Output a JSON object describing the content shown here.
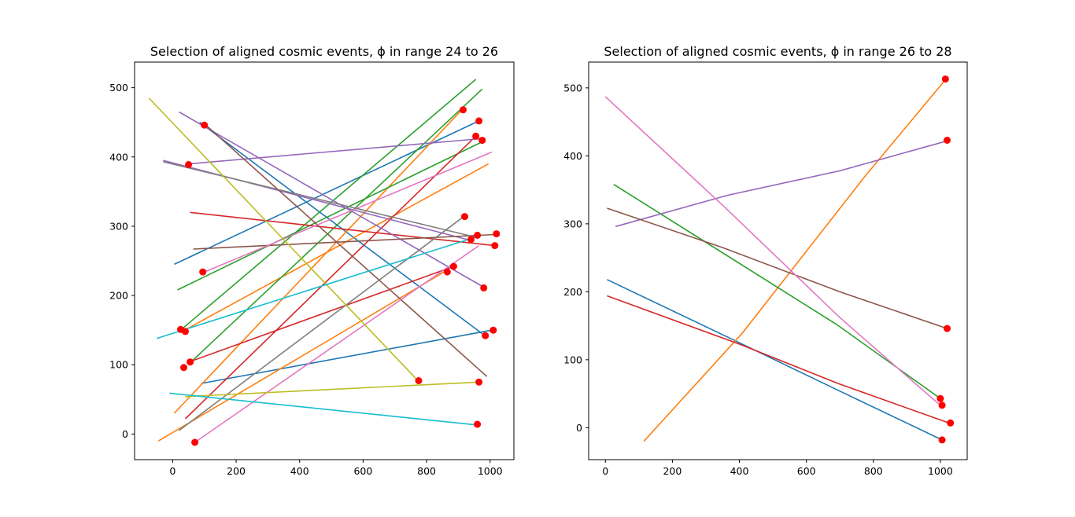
{
  "chart_data": [
    {
      "type": "line",
      "title": "Selection of aligned cosmic events, ϕ in range 24 to 26",
      "xlabel": "",
      "ylabel": "",
      "xlim": [
        -120,
        1075
      ],
      "ylim": [
        -37,
        537
      ],
      "xticks": [
        "0",
        "200",
        "400",
        "600",
        "800",
        "1000"
      ],
      "yticks": [
        "0",
        "100",
        "200",
        "300",
        "400",
        "500"
      ],
      "grid": false,
      "series": [
        {
          "color": "#1f77b4",
          "x": [
            5,
            965
          ],
          "y": [
            245,
            452
          ]
        },
        {
          "color": "#1f77b4",
          "x": [
            85,
            975
          ],
          "y": [
            450,
            145
          ]
        },
        {
          "color": "#1f77b4",
          "x": [
            90,
            1005
          ],
          "y": [
            73,
            150
          ]
        },
        {
          "color": "#ff7f0e",
          "x": [
            5,
            915
          ],
          "y": [
            30,
            470
          ]
        },
        {
          "color": "#ff7f0e",
          "x": [
            30,
            995
          ],
          "y": [
            148,
            390
          ]
        },
        {
          "color": "#ff7f0e",
          "x": [
            -45,
            870
          ],
          "y": [
            -10,
            238
          ]
        },
        {
          "color": "#2ca02c",
          "x": [
            15,
            980
          ],
          "y": [
            208,
            423
          ]
        },
        {
          "color": "#2ca02c",
          "x": [
            25,
            955
          ],
          "y": [
            150,
            512
          ]
        },
        {
          "color": "#2ca02c",
          "x": [
            60,
            975
          ],
          "y": [
            105,
            498
          ]
        },
        {
          "color": "#d62728",
          "x": [
            55,
            1015
          ],
          "y": [
            320,
            272
          ]
        },
        {
          "color": "#d62728",
          "x": [
            45,
            885
          ],
          "y": [
            103,
            242
          ]
        },
        {
          "color": "#d62728",
          "x": [
            40,
            955
          ],
          "y": [
            22,
            430
          ]
        },
        {
          "color": "#9467bd",
          "x": [
            20,
            980
          ],
          "y": [
            465,
            212
          ]
        },
        {
          "color": "#9467bd",
          "x": [
            -30,
            935
          ],
          "y": [
            395,
            280
          ]
        },
        {
          "color": "#9467bd",
          "x": [
            50,
            985
          ],
          "y": [
            390,
            427
          ]
        },
        {
          "color": "#8c564b",
          "x": [
            95,
            990
          ],
          "y": [
            450,
            83
          ]
        },
        {
          "color": "#8c564b",
          "x": [
            65,
            1015
          ],
          "y": [
            267,
            288
          ]
        },
        {
          "color": "#e377c2",
          "x": [
            95,
            1005
          ],
          "y": [
            233,
            407
          ]
        },
        {
          "color": "#e377c2",
          "x": [
            70,
            965
          ],
          "y": [
            -12,
            272
          ]
        },
        {
          "color": "#7f7f7f",
          "x": [
            -30,
            965
          ],
          "y": [
            393,
            283
          ]
        },
        {
          "color": "#7f7f7f",
          "x": [
            20,
            920
          ],
          "y": [
            5,
            315
          ]
        },
        {
          "color": "#bcbd22",
          "x": [
            -75,
            775
          ],
          "y": [
            485,
            76
          ]
        },
        {
          "color": "#bcbd22",
          "x": [
            40,
            965
          ],
          "y": [
            54,
            75
          ]
        },
        {
          "color": "#17becf",
          "x": [
            -50,
            960
          ],
          "y": [
            138,
            285
          ]
        },
        {
          "color": "#17becf",
          "x": [
            -10,
            960
          ],
          "y": [
            59,
            13
          ]
        }
      ],
      "markers": {
        "color": "#ff0000",
        "x": [
          100,
          915,
          965,
          955,
          975,
          50,
          920,
          960,
          940,
          1020,
          1015,
          95,
          885,
          865,
          980,
          25,
          40,
          1010,
          985,
          55,
          35,
          775,
          965,
          960,
          70
        ],
        "y": [
          446,
          468,
          452,
          430,
          424,
          389,
          314,
          287,
          281,
          289,
          272,
          234,
          242,
          234,
          211,
          151,
          148,
          150,
          142,
          104,
          96,
          77,
          75,
          14,
          -12
        ]
      }
    },
    {
      "type": "line",
      "title": "Selection of aligned cosmic events, ϕ in range 26 to 28",
      "xlabel": "",
      "ylabel": "",
      "xlim": [
        -50,
        1080
      ],
      "ylim": [
        -47,
        538
      ],
      "xticks": [
        "0",
        "200",
        "400",
        "600",
        "800",
        "1000"
      ],
      "yticks": [
        "0",
        "100",
        "200",
        "300",
        "400",
        "500"
      ],
      "grid": false,
      "series": [
        {
          "color": "#1f77b4",
          "x": [
            5,
            400,
            695,
            1005
          ],
          "y": [
            218,
            125,
            55,
            -18
          ]
        },
        {
          "color": "#ff7f0e",
          "x": [
            115,
            410,
            775,
            1015
          ],
          "y": [
            -20,
            140,
            370,
            512
          ]
        },
        {
          "color": "#2ca02c",
          "x": [
            25,
            690,
            1000
          ],
          "y": [
            358,
            152,
            43
          ]
        },
        {
          "color": "#d62728",
          "x": [
            5,
            405,
            695,
            1025
          ],
          "y": [
            194,
            122,
            65,
            7
          ]
        },
        {
          "color": "#9467bd",
          "x": [
            30,
            365,
            700,
            1020
          ],
          "y": [
            296,
            342,
            378,
            422
          ]
        },
        {
          "color": "#8c564b",
          "x": [
            5,
            350,
            700,
            1020
          ],
          "y": [
            323,
            265,
            200,
            146
          ]
        },
        {
          "color": "#e377c2",
          "x": [
            0,
            355,
            700,
            995
          ],
          "y": [
            487,
            325,
            162,
            35
          ]
        }
      ],
      "markers": {
        "color": "#ff0000",
        "x": [
          1015,
          1020,
          1020,
          1000,
          1005,
          1030,
          1005
        ],
        "y": [
          513,
          423,
          146,
          43,
          33,
          7,
          -18
        ]
      }
    }
  ]
}
